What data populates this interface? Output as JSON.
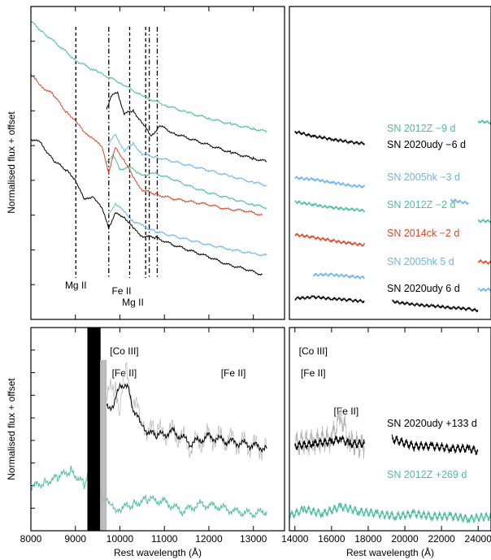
{
  "chart_data": [
    {
      "type": "line",
      "panel": "top-left",
      "ylabel": "Normalised flux + offset",
      "xlim": [
        8000,
        13700
      ],
      "x_ticks": [
        8000,
        9000,
        10000,
        11000,
        12000,
        13000
      ],
      "line_annotations": [
        {
          "label": "Mg II",
          "x": 9010,
          "style": "dashed",
          "label_row": 1
        },
        {
          "label": "",
          "x": 9750,
          "style": "dashdot",
          "label_row": 0
        },
        {
          "label": "Fe II",
          "x": 10220,
          "style": "dashed",
          "label_row": 2
        },
        {
          "label": "",
          "x": 10580,
          "style": "dashed",
          "label_row": 0
        },
        {
          "label": "",
          "x": 10660,
          "style": "dashdot",
          "label_row": 0
        },
        {
          "label": "Mg II",
          "x": 10840,
          "style": "dashdot",
          "label_row": 3
        }
      ],
      "series": [
        {
          "name": "SN 2012Z −9 d",
          "color": "#4dbf9e",
          "x": [
            8000,
            8300,
            8700,
            9000,
            9500,
            10000,
            10500,
            11000,
            11500,
            12000,
            12500,
            13000,
            13300
          ],
          "y": [
            10.0,
            9.6,
            9.1,
            8.7,
            8.3,
            7.95,
            7.5,
            7.2,
            6.95,
            6.75,
            6.55,
            6.4,
            6.3
          ]
        },
        {
          "name": "SN 2020udy −6 d",
          "color": "#000000",
          "x": [
            9700,
            9800,
            9950,
            10100,
            10300,
            10500,
            10700,
            10900,
            11200,
            11600,
            12000,
            12500,
            13000,
            13300
          ],
          "y": [
            7.05,
            7.5,
            7.6,
            6.9,
            7.0,
            6.6,
            6.15,
            6.5,
            6.25,
            6.05,
            5.85,
            5.6,
            5.4,
            5.3
          ]
        },
        {
          "name": "SN 2005hk −3 d",
          "color": "#6ab4f4",
          "x": [
            9750,
            9900,
            10100,
            10300,
            10500,
            10800,
            11200,
            11600,
            12000,
            12500,
            13000,
            13300
          ],
          "y": [
            5.9,
            6.2,
            5.65,
            5.9,
            5.55,
            5.45,
            5.3,
            5.15,
            5.0,
            4.8,
            4.6,
            4.5
          ]
        },
        {
          "name": "SN 2012Z −2 d",
          "color": "#4dbf9e",
          "x": [
            9700,
            9850,
            10000,
            10200,
            10400,
            10600,
            10800,
            11200,
            11600,
            12000,
            12500,
            13000,
            13300
          ],
          "y": [
            5.25,
            5.55,
            5.0,
            5.15,
            4.9,
            4.85,
            4.9,
            4.7,
            4.45,
            4.25,
            4.05,
            3.85,
            3.75
          ]
        },
        {
          "name": "SN 2014ck −2 d",
          "color": "#d94a2b",
          "x": [
            8000,
            8200,
            8500,
            8800,
            9000,
            9200,
            9400,
            9600,
            9750,
            9900,
            10100,
            10300,
            10500,
            10800,
            11200,
            11600,
            12000,
            12400,
            12800,
            13200
          ],
          "y": [
            8.25,
            7.85,
            7.55,
            6.95,
            6.7,
            6.25,
            6.1,
            5.75,
            4.95,
            5.75,
            5.35,
            4.75,
            4.35,
            4.2,
            4.05,
            3.95,
            3.85,
            3.7,
            3.65,
            3.5
          ]
        },
        {
          "name": "SN 2005hk 5 d",
          "color": "#6ab4f4",
          "x": [
            9750,
            9900,
            10100,
            10300,
            10500,
            10800,
            11200,
            11600,
            12000,
            12500,
            13000,
            13300
          ],
          "y": [
            3.5,
            3.9,
            3.6,
            3.3,
            3.15,
            2.95,
            2.8,
            2.65,
            2.5,
            2.35,
            2.2,
            2.15
          ]
        },
        {
          "name": "SN 2020udy 6 d",
          "color": "#000000",
          "x": [
            8000,
            8200,
            8500,
            8800,
            9000,
            9200,
            9400,
            9600,
            9750,
            9900,
            10100,
            10300,
            10500,
            10800,
            11200,
            11600,
            12000,
            12400,
            12800,
            13200
          ],
          "y": [
            6.05,
            5.95,
            5.35,
            5.0,
            4.7,
            4.0,
            4.15,
            3.7,
            3.1,
            3.55,
            3.45,
            3.05,
            2.8,
            2.75,
            2.5,
            2.3,
            2.1,
            1.85,
            1.7,
            1.5
          ]
        }
      ]
    },
    {
      "type": "line",
      "panel": "top-right",
      "xlim": [
        13700,
        24700
      ],
      "series": [
        {
          "name": "SN 2012Z −9 d",
          "color": "#4dbf9e",
          "x": [
            13700,
            16000,
            18000,
            20000,
            22000,
            24000,
            24700
          ],
          "y": [
            7.2,
            7.05,
            6.95,
            6.85,
            6.75,
            6.65,
            6.6
          ]
        },
        {
          "name": "SN 2020udy −6 d",
          "color": "#000000",
          "x": [
            14000,
            15000,
            16000,
            17000,
            17800
          ],
          "y": [
            6.3,
            6.15,
            6.05,
            5.95,
            5.9
          ]
        },
        {
          "name": "SN 2005hk −3 d",
          "color": "#6ab4f4",
          "x": [
            14000,
            15000,
            16000,
            17000,
            17800,
            19300,
            21000,
            22500,
            23500
          ],
          "y": [
            4.75,
            4.7,
            4.6,
            4.5,
            4.45,
            4.3,
            4.15,
            4.0,
            3.9
          ]
        },
        {
          "name": "SN 2012Z −2 d",
          "color": "#4dbf9e",
          "x": [
            14000,
            15000,
            16000,
            17000,
            17800,
            19500,
            21000,
            22500,
            24000,
            24700
          ],
          "y": [
            3.95,
            3.85,
            3.75,
            3.7,
            3.65,
            3.45,
            3.4,
            3.35,
            3.3,
            3.3
          ]
        },
        {
          "name": "SN 2014ck −2 d",
          "color": "#d94a2b",
          "x": [
            14000,
            15000,
            16000,
            17000,
            17800,
            19500,
            21000,
            22500,
            24000,
            24700
          ],
          "y": [
            2.85,
            2.75,
            2.65,
            2.55,
            2.5,
            2.25,
            2.15,
            2.05,
            1.95,
            1.9
          ]
        },
        {
          "name": "SN 2005hk 5 d",
          "color": "#6ab4f4",
          "x": [
            13700,
            15000,
            16000,
            17000,
            17800,
            19500,
            21000,
            22500,
            24000,
            24700
          ],
          "y": [
            1.45,
            1.5,
            1.5,
            1.45,
            1.4,
            1.2,
            1.15,
            1.1,
            1.0,
            1.0
          ]
        },
        {
          "name": "SN 2020udy 6 d",
          "color": "#000000",
          "x": [
            14000,
            15000,
            16000,
            17000,
            17800,
            19300,
            20500,
            21500,
            22500,
            23500,
            24000
          ],
          "y": [
            0.7,
            0.75,
            0.7,
            0.65,
            0.6,
            0.6,
            0.5,
            0.45,
            0.4,
            0.35,
            0.3
          ]
        }
      ]
    },
    {
      "type": "line",
      "panel": "bottom-left",
      "ylabel": "Normalised flux + offset",
      "xlabel": "Rest wavelength (Å)",
      "xlim": [
        8000,
        13700
      ],
      "x_ticks": [
        8000,
        9000,
        10000,
        11000,
        12000,
        13000
      ],
      "annotations": [
        {
          "text": "[Co III]",
          "x": 10100,
          "row": 0
        },
        {
          "text": "[Fe II]",
          "x": 10100,
          "row": 1
        },
        {
          "text": "[Fe II]",
          "x": 12550,
          "row": 1
        }
      ],
      "series": [
        {
          "name": "SN 2020udy +133 d (raw)",
          "color": "#b3b3b3",
          "x": [
            9700,
            9900,
            10000,
            10150,
            10300,
            10500,
            10800,
            11200,
            11600,
            12000,
            12400,
            12800,
            13300
          ],
          "y": [
            2.8,
            2.9,
            2.6,
            3.3,
            2.7,
            2.2,
            2.0,
            2.05,
            1.75,
            1.95,
            1.9,
            1.8,
            1.7
          ]
        },
        {
          "name": "SN 2020udy +133 d",
          "color": "#000000",
          "x": [
            9700,
            9850,
            10000,
            10100,
            10200,
            10300,
            10500,
            10800,
            11200,
            11600,
            12000,
            12400,
            12800,
            13300
          ],
          "y": [
            2.55,
            2.6,
            2.95,
            3.05,
            2.9,
            2.5,
            2.15,
            1.95,
            2.05,
            1.8,
            1.95,
            1.85,
            1.8,
            1.7
          ]
        },
        {
          "name": "SN 2012Z +269 d",
          "color": "#4dbf9e",
          "x": [
            8000,
            8300,
            8600,
            8900,
            9200,
            9400,
            9600,
            9800,
            10000,
            10300,
            10600,
            11000,
            11400,
            11800,
            12200,
            12600,
            13000,
            13300
          ],
          "y": [
            0.9,
            1.0,
            1.1,
            1.25,
            0.95,
            1.45,
            0.7,
            0.5,
            0.45,
            0.55,
            0.65,
            0.6,
            0.4,
            0.55,
            0.5,
            0.4,
            0.35,
            0.4
          ]
        }
      ]
    },
    {
      "type": "line",
      "panel": "bottom-right",
      "xlabel": "Rest wavelength (Å)",
      "xlim": [
        13700,
        24700
      ],
      "x_ticks": [
        14000,
        16000,
        18000,
        20000,
        22000,
        24000
      ],
      "annotations": [
        {
          "text": "[Co III]",
          "x": 15000,
          "row": 0
        },
        {
          "text": "[Fe II]",
          "x": 15000,
          "row": 1
        },
        {
          "text": "[Fe II]",
          "x": 16800,
          "row": 2
        }
      ],
      "series": [
        {
          "name": "SN 2020udy +133 d (raw)",
          "color": "#b3b3b3",
          "x": [
            14000,
            15000,
            16000,
            16500,
            17000,
            17800
          ],
          "y": [
            1.8,
            1.85,
            1.9,
            2.4,
            1.8,
            1.75
          ]
        },
        {
          "name": "SN 2020udy +133 d",
          "color": "#000000",
          "x": [
            14000,
            15000,
            16000,
            16500,
            17000,
            17800,
            19300,
            20500,
            21500,
            22500,
            23500,
            24000
          ],
          "y": [
            1.75,
            1.8,
            1.85,
            1.9,
            1.8,
            1.8,
            1.9,
            1.75,
            1.75,
            1.7,
            1.7,
            1.65
          ]
        },
        {
          "name": "SN 2012Z +269 d",
          "color": "#4dbf9e",
          "x": [
            13700,
            14500,
            15500,
            16500,
            17500,
            18500,
            19500,
            20500,
            21500,
            22500,
            23500,
            24700
          ],
          "y": [
            0.3,
            0.45,
            0.35,
            0.5,
            0.4,
            0.35,
            0.3,
            0.35,
            0.3,
            0.3,
            0.25,
            0.3
          ]
        }
      ]
    }
  ],
  "labels": {
    "top": [
      {
        "text": "SN 2012Z −9 d",
        "color": "#4dbf9e"
      },
      {
        "text": "SN 2020udy −6 d",
        "color": "#000000"
      },
      {
        "text": "SN 2005hk −3 d",
        "color": "#6ab4f4"
      },
      {
        "text": "SN 2012Z −2 d",
        "color": "#4dbf9e"
      },
      {
        "text": "SN 2014ck −2 d",
        "color": "#d94a2b"
      },
      {
        "text": "SN 2005hk 5 d",
        "color": "#6ab4f4"
      },
      {
        "text": "SN 2020udy 6 d",
        "color": "#000000"
      }
    ],
    "bottom": [
      {
        "text": "SN 2020udy +133 d",
        "color": "#000000"
      },
      {
        "text": "SN 2012Z +269 d",
        "color": "#4dbf9e"
      }
    ]
  },
  "axes": {
    "ylabel": "Normalised flux + offset",
    "xlabel": "Rest wavelength (Å)",
    "left_ticks": [
      "8000",
      "9000",
      "10000",
      "11000",
      "12000",
      "13000"
    ],
    "right_ticks": [
      "14000",
      "16000",
      "18000",
      "20000",
      "22000",
      "24000"
    ]
  }
}
